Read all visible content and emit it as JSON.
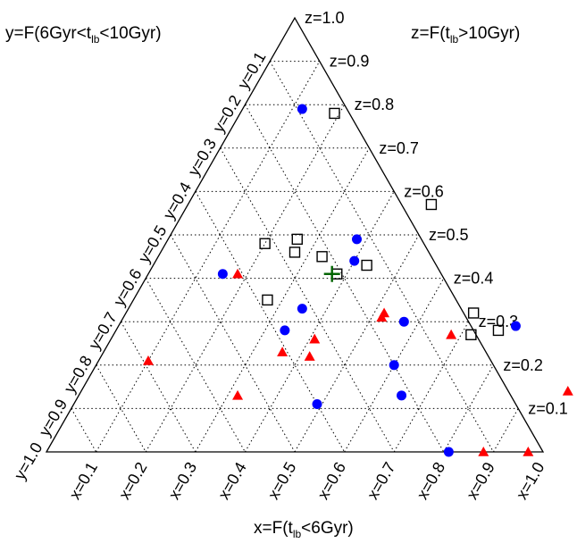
{
  "chart_data": {
    "type": "scatter",
    "subtype": "ternary",
    "labels": {
      "x_axis": {
        "pre": "x=F(t",
        "sub": "lb",
        "post": "<6Gyr)"
      },
      "y_axis": {
        "pre": "y=F(6Gyr<t",
        "sub": "lb",
        "post": "<10Gyr)"
      },
      "z_axis": {
        "pre": "z=F(t",
        "sub": "lb",
        "post": ">10Gyr)"
      }
    },
    "ticks": {
      "x": [
        "x=0.1",
        "x=0.2",
        "x=0.3",
        "x=0.4",
        "x=0.5",
        "x=0.6",
        "x=0.7",
        "x=0.8",
        "x=0.9",
        "x=1.0"
      ],
      "y": [
        "y=0.1",
        "y=0.2",
        "y=0.3",
        "y=0.4",
        "y=0.5",
        "y=0.6",
        "y=0.7",
        "y=0.8",
        "y=0.9",
        "y=1.0"
      ],
      "z": [
        "z=0.1",
        "z=0.2",
        "z=0.3",
        "z=0.4",
        "z=0.5",
        "z=0.6",
        "z=0.7",
        "z=0.8",
        "z=0.9",
        "z=1.0"
      ]
    },
    "grid": true,
    "series": [
      {
        "marker": "circle",
        "color": "#0000ff",
        "points": [
          {
            "x": 0.12,
            "z": 0.79
          },
          {
            "x": 0.15,
            "z": 0.41
          },
          {
            "x": 0.38,
            "z": 0.49
          },
          {
            "x": 0.4,
            "z": 0.44
          },
          {
            "x": 0.35,
            "z": 0.33
          },
          {
            "x": 0.34,
            "z": 0.28
          },
          {
            "x": 0.57,
            "z": 0.3
          },
          {
            "x": 0.8,
            "z": 0.29
          },
          {
            "x": 0.6,
            "z": 0.2
          },
          {
            "x": 0.65,
            "z": 0.13
          },
          {
            "x": 0.49,
            "z": 0.11
          },
          {
            "x": 0.81,
            "z": 0.0
          }
        ]
      },
      {
        "marker": "triangle",
        "color": "#ff0000",
        "points": [
          {
            "x": 0.18,
            "z": 0.41
          },
          {
            "x": 0.1,
            "z": 0.21
          },
          {
            "x": 0.52,
            "z": 0.32
          },
          {
            "x": 0.52,
            "z": 0.31
          },
          {
            "x": 0.41,
            "z": 0.26
          },
          {
            "x": 0.36,
            "z": 0.23
          },
          {
            "x": 0.42,
            "z": 0.22
          },
          {
            "x": 0.32,
            "z": 0.13
          },
          {
            "x": 0.68,
            "z": 0.27
          },
          {
            "x": 0.98,
            "z": 0.14
          },
          {
            "x": 0.88,
            "z": 0.0
          },
          {
            "x": 0.97,
            "z": 0.0
          }
        ]
      },
      {
        "marker": "square",
        "color": "#000000",
        "points": [
          {
            "x": 0.19,
            "z": 0.78
          },
          {
            "x": 0.49,
            "z": 0.57
          },
          {
            "x": 0.2,
            "z": 0.48
          },
          {
            "x": 0.26,
            "z": 0.49
          },
          {
            "x": 0.27,
            "z": 0.46
          },
          {
            "x": 0.33,
            "z": 0.45
          },
          {
            "x": 0.43,
            "z": 0.43
          },
          {
            "x": 0.38,
            "z": 0.41
          },
          {
            "x": 0.27,
            "z": 0.35
          },
          {
            "x": 0.7,
            "z": 0.32
          },
          {
            "x": 0.72,
            "z": 0.27
          },
          {
            "x": 0.77,
            "z": 0.28
          }
        ]
      },
      {
        "marker": "plus",
        "color": "#006400",
        "points": [
          {
            "x": 0.37,
            "z": 0.41
          }
        ]
      }
    ]
  }
}
